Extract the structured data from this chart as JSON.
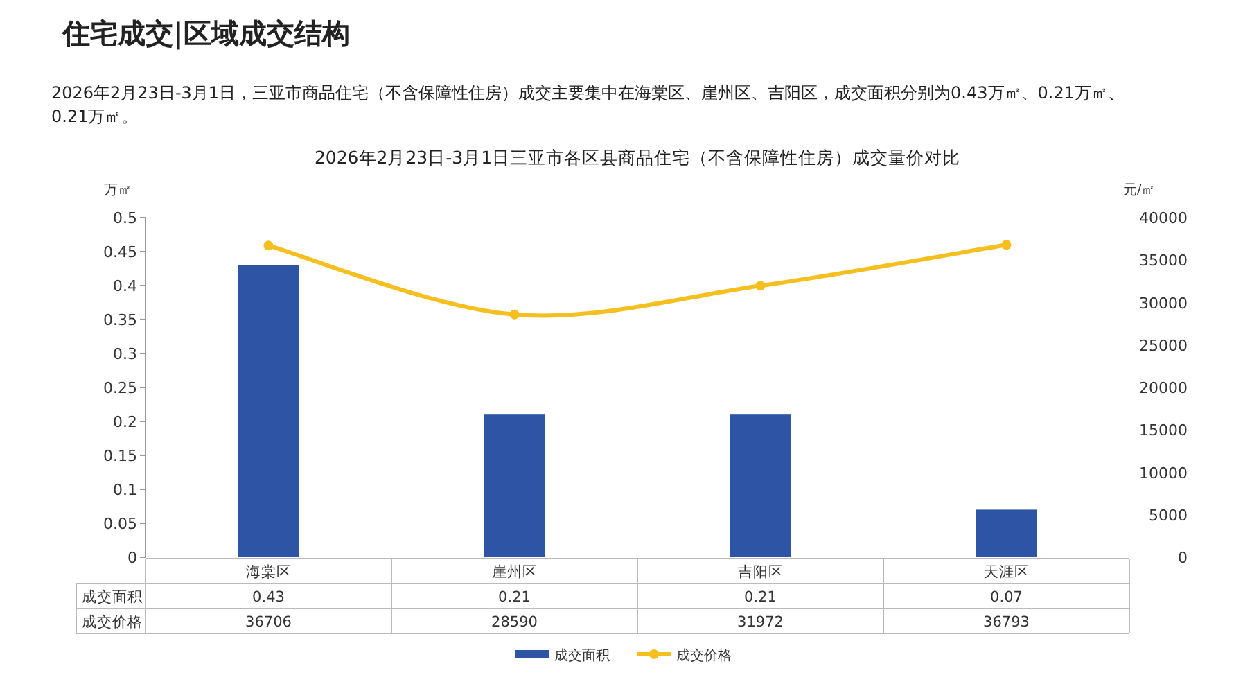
{
  "chart_data": {
    "type": "bar",
    "title": "2026年2月23日-3月1日三亚市各区县商品住宅（不含保障性住房）成交量价对比",
    "annotations": [
      "住宅成交|区域成交结构",
      "2026年2月23日-3月1日，三亚市商品住宅（不含保障性住房）成交主要集中在海棠区、崖州区、吉阳区，成交面积分别为0.43万㎡、0.21万㎡、0.21万㎡。"
    ],
    "ylabel": "万㎡",
    "y2label": "元/㎡",
    "categories": [
      "海棠区",
      "崖州区",
      "吉阳区",
      "天涯区"
    ],
    "series": [
      {
        "name": "成交面积",
        "color": "#2e55a5",
        "values": [
          0.43,
          0.21,
          0.21,
          0.07
        ]
      },
      {
        "name": "成交价格",
        "type": "line",
        "axis": "y2",
        "color": "#f5bf1f",
        "values": [
          36706,
          28590,
          31972,
          36793
        ]
      }
    ],
    "ylim": [
      0,
      0.5
    ],
    "yticks": [
      0,
      0.05,
      0.1,
      0.15,
      0.2,
      0.25,
      0.3,
      0.35,
      0.4,
      0.45,
      0.5
    ],
    "y2lim": [
      0,
      40000
    ],
    "y2ticks": [
      0,
      5000,
      10000,
      15000,
      20000,
      25000,
      30000,
      35000,
      40000
    ],
    "marker": "circle",
    "data_labels": true,
    "legend": "bottom"
  }
}
